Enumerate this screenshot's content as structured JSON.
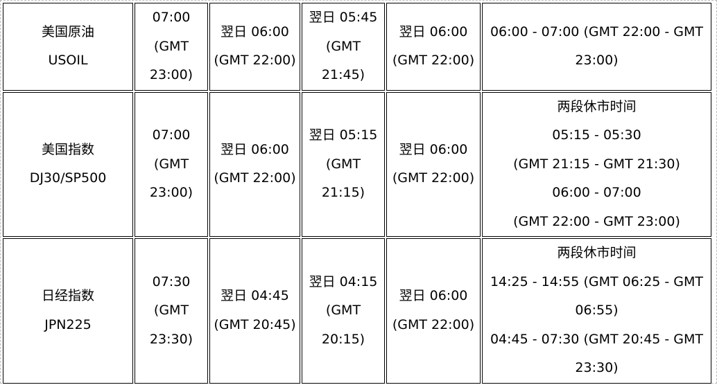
{
  "rows": [
    {
      "cells": [
        [
          "美国原油",
          "USOIL"
        ],
        [
          "07:00",
          "(GMT",
          "23:00)"
        ],
        [
          "翌日 06:00",
          "(GMT 22:00)"
        ],
        [
          "翌日 05:45",
          "(GMT",
          "21:45)"
        ],
        [
          "翌日 06:00",
          "(GMT 22:00)"
        ],
        [
          "06:00 - 07:00 (GMT 22:00 - GMT",
          "23:00)"
        ]
      ]
    },
    {
      "cells": [
        [
          "美国指数",
          "DJ30/SP500"
        ],
        [
          "07:00",
          "(GMT",
          "23:00)"
        ],
        [
          "翌日 06:00",
          "(GMT 22:00)"
        ],
        [
          "翌日 05:15",
          "(GMT",
          "21:15)"
        ],
        [
          "翌日 06:00",
          "(GMT 22:00)"
        ],
        [
          "两段休市时间",
          "05:15 - 05:30",
          "(GMT 21:15 - GMT 21:30)",
          "06:00 - 07:00",
          "(GMT 22:00 - GMT 23:00)"
        ]
      ]
    },
    {
      "cells": [
        [
          "日经指数",
          "JPN225"
        ],
        [
          "07:30",
          "(GMT",
          "23:30)"
        ],
        [
          "翌日 04:45",
          "(GMT 20:45)"
        ],
        [
          "翌日 04:15",
          "(GMT",
          "20:15)"
        ],
        [
          "翌日 06:00",
          "(GMT 22:00)"
        ],
        [
          "两段休市时间",
          "14:25 - 14:55 (GMT 06:25 - GMT",
          "06:55)",
          "04:45 - 07:30 (GMT 20:45 - GMT",
          "23:30)"
        ]
      ]
    }
  ]
}
